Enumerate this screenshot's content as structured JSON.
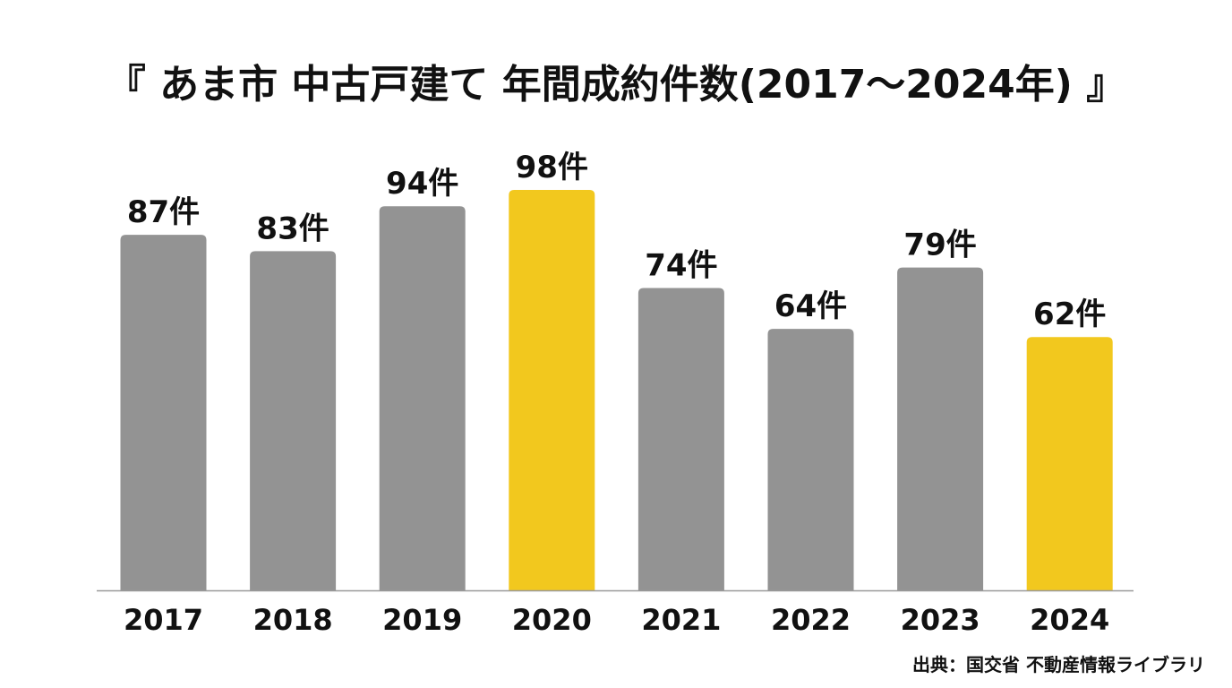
{
  "title": "『 あま市 中古戸建て 年間成約件数(2017〜2024年) 』",
  "source": "出典：国交省 不動産情報ライブラリ",
  "colors": {
    "default_bar": "#939393",
    "highlight_bar": "#f2c81e",
    "axis_line": "#999999",
    "text": "#111111"
  },
  "chart_data": {
    "type": "bar",
    "categories": [
      "2017",
      "2018",
      "2019",
      "2020",
      "2021",
      "2022",
      "2023",
      "2024"
    ],
    "values": [
      87,
      83,
      94,
      98,
      74,
      64,
      79,
      62
    ],
    "data_labels": [
      "87件",
      "83件",
      "94件",
      "98件",
      "74件",
      "64件",
      "79件",
      "62件"
    ],
    "highlighted": [
      "2020",
      "2024"
    ],
    "unit": "件",
    "xlabel": "",
    "ylabel": "",
    "ylim": [
      0,
      98
    ],
    "grid": false,
    "legend": "none"
  }
}
